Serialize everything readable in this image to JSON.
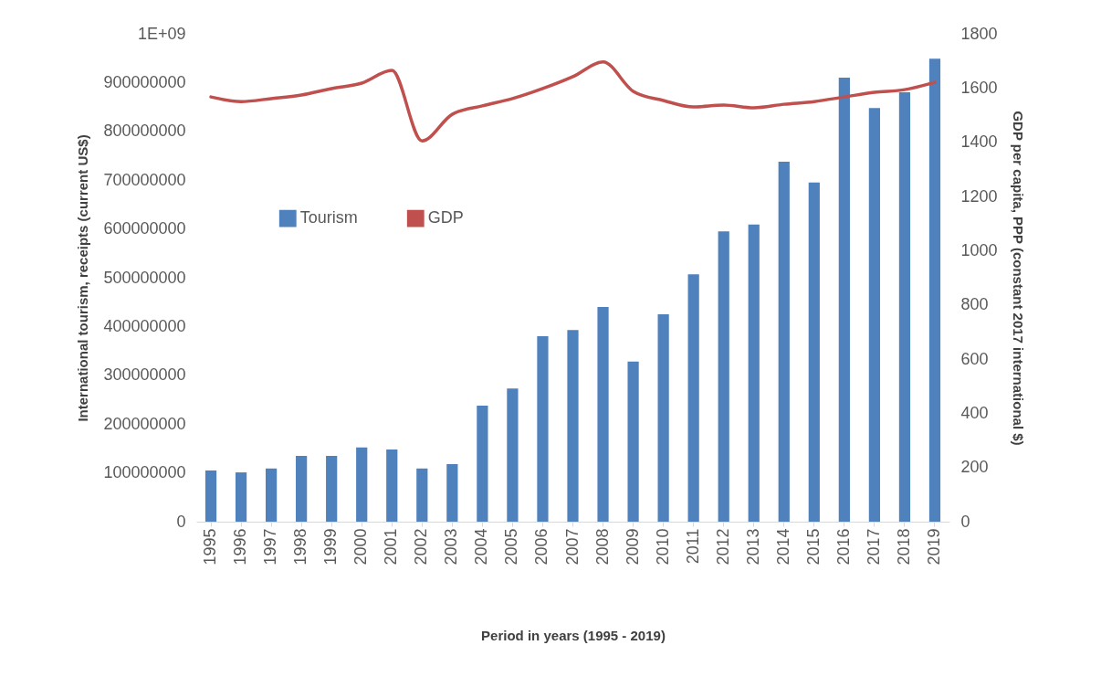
{
  "chart_data": {
    "type": "bar",
    "xlabel": "Period in years (1995 - 2019)",
    "ylabel": "International tourism, receipts (current US$)",
    "y2label": "GDP per capita, PPP (constant 2017 international $)",
    "categories": [
      "1995",
      "1996",
      "1997",
      "1998",
      "1999",
      "2000",
      "2001",
      "2002",
      "2003",
      "2004",
      "2005",
      "2006",
      "2007",
      "2008",
      "2009",
      "2010",
      "2011",
      "2012",
      "2013",
      "2014",
      "2015",
      "2016",
      "2017",
      "2018",
      "2019"
    ],
    "series": [
      {
        "name": "Tourism",
        "color": "#4f81bd",
        "values": [
          105000000,
          101000000,
          109000000,
          135000000,
          135000000,
          152000000,
          148000000,
          109000000,
          118000000,
          238000000,
          273000000,
          380000000,
          393000000,
          440000000,
          328000000,
          425000000,
          507000000,
          595000000,
          609000000,
          738000000,
          695000000,
          910000000,
          848000000,
          880000000,
          949000000
        ]
      },
      {
        "name": "GDP",
        "type": "line",
        "axis": "y2",
        "color": "#c0504d",
        "values": [
          1567,
          1550,
          1561,
          1574,
          1598,
          1618,
          1665,
          1405,
          1503,
          1534,
          1561,
          1598,
          1642,
          1696,
          1588,
          1554,
          1530,
          1537,
          1527,
          1540,
          1550,
          1567,
          1584,
          1594,
          1621
        ]
      }
    ],
    "ylim": [
      0,
      1000000000
    ],
    "yticks": [
      0,
      100000000,
      200000000,
      300000000,
      400000000,
      500000000,
      600000000,
      700000000,
      800000000,
      900000000,
      {
        "value": 1000000000,
        "label": "1E+09"
      }
    ],
    "y2lim": [
      0,
      1800
    ],
    "y2ticks": [
      0,
      200,
      400,
      600,
      800,
      1000,
      1200,
      1400,
      1600,
      1800
    ],
    "legend": "left",
    "grid": false
  }
}
